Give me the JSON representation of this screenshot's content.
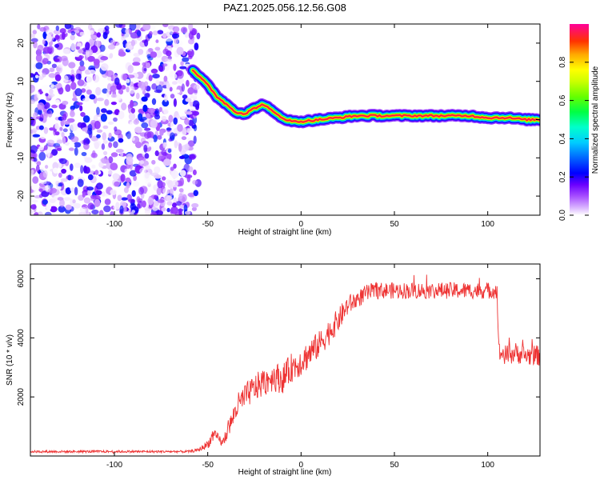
{
  "title": "PAZ1.2025.056.12.56.G08",
  "chart_data": [
    {
      "type": "heatmap",
      "xlabel": "Height of straight line (km)",
      "ylabel": "Frequency (Hz)",
      "xlim": [
        -145,
        128
      ],
      "ylim": [
        -25,
        25
      ],
      "xticks": [
        -100,
        -50,
        0,
        50,
        100
      ],
      "yticks": [
        -20,
        -10,
        0,
        10,
        20
      ],
      "colorbar": {
        "label": "Normalized spectral amplitude",
        "ticks": [
          0.0,
          0.2,
          0.4,
          0.6,
          0.8
        ],
        "range": [
          0,
          1
        ],
        "colormap": [
          "#ffffff",
          "#cc99ff",
          "#7a00ff",
          "#0000ff",
          "#00ccff",
          "#00ff66",
          "#66ff00",
          "#ffff00",
          "#ff9900",
          "#ff0000",
          "#ff00aa"
        ]
      },
      "noise_region": {
        "x_from": -145,
        "x_to": -55,
        "amplitude_range": [
          0.0,
          0.25
        ]
      },
      "ridge": {
        "x": [
          -58,
          -55,
          -50,
          -45,
          -40,
          -35,
          -30,
          -25,
          -20,
          -15,
          -10,
          -5,
          0,
          10,
          20,
          30,
          40,
          50,
          60,
          70,
          80,
          90,
          100,
          110,
          120,
          128
        ],
        "frequency": [
          13,
          11.5,
          9,
          6,
          4,
          2,
          1.5,
          3,
          4,
          2,
          0.5,
          -0.5,
          -0.5,
          0,
          0.5,
          1,
          1,
          1,
          1,
          1,
          1,
          1,
          0.5,
          0.5,
          0,
          0
        ],
        "peak_amplitude": 0.95
      }
    },
    {
      "type": "line",
      "xlabel": "Height of straight line (km)",
      "ylabel": "SNR (10 * v/v)",
      "xlim": [
        -145,
        128
      ],
      "ylim": [
        0,
        6500
      ],
      "xticks": [
        -100,
        -50,
        0,
        50,
        100
      ],
      "yticks": [
        2000,
        4000,
        6000
      ],
      "series": [
        {
          "color": "#ee3333",
          "x": [
            -145,
            -120,
            -100,
            -80,
            -60,
            -55,
            -50,
            -47,
            -44,
            -42,
            -40,
            -37,
            -35,
            -30,
            -25,
            -20,
            -15,
            -10,
            -5,
            0,
            5,
            10,
            15,
            20,
            25,
            30,
            35,
            40,
            50,
            60,
            70,
            80,
            90,
            100,
            105,
            106,
            110,
            115,
            120,
            128
          ],
          "values": [
            150,
            150,
            150,
            150,
            150,
            200,
            400,
            700,
            600,
            400,
            800,
            1200,
            1600,
            2000,
            2300,
            2500,
            2700,
            2600,
            3000,
            3200,
            3500,
            3800,
            4200,
            4600,
            5100,
            5300,
            5500,
            5600,
            5600,
            5600,
            5600,
            5600,
            5600,
            5600,
            5600,
            3500,
            3400,
            3500,
            3400,
            3400
          ],
          "noise_amplitude": [
            40,
            40,
            40,
            40,
            40,
            60,
            150,
            200,
            150,
            150,
            300,
            300,
            450,
            450,
            450,
            500,
            500,
            500,
            500,
            500,
            500,
            450,
            450,
            400,
            350,
            300,
            300,
            280,
            280,
            280,
            280,
            280,
            280,
            280,
            280,
            350,
            350,
            350,
            350,
            350
          ]
        }
      ]
    }
  ]
}
